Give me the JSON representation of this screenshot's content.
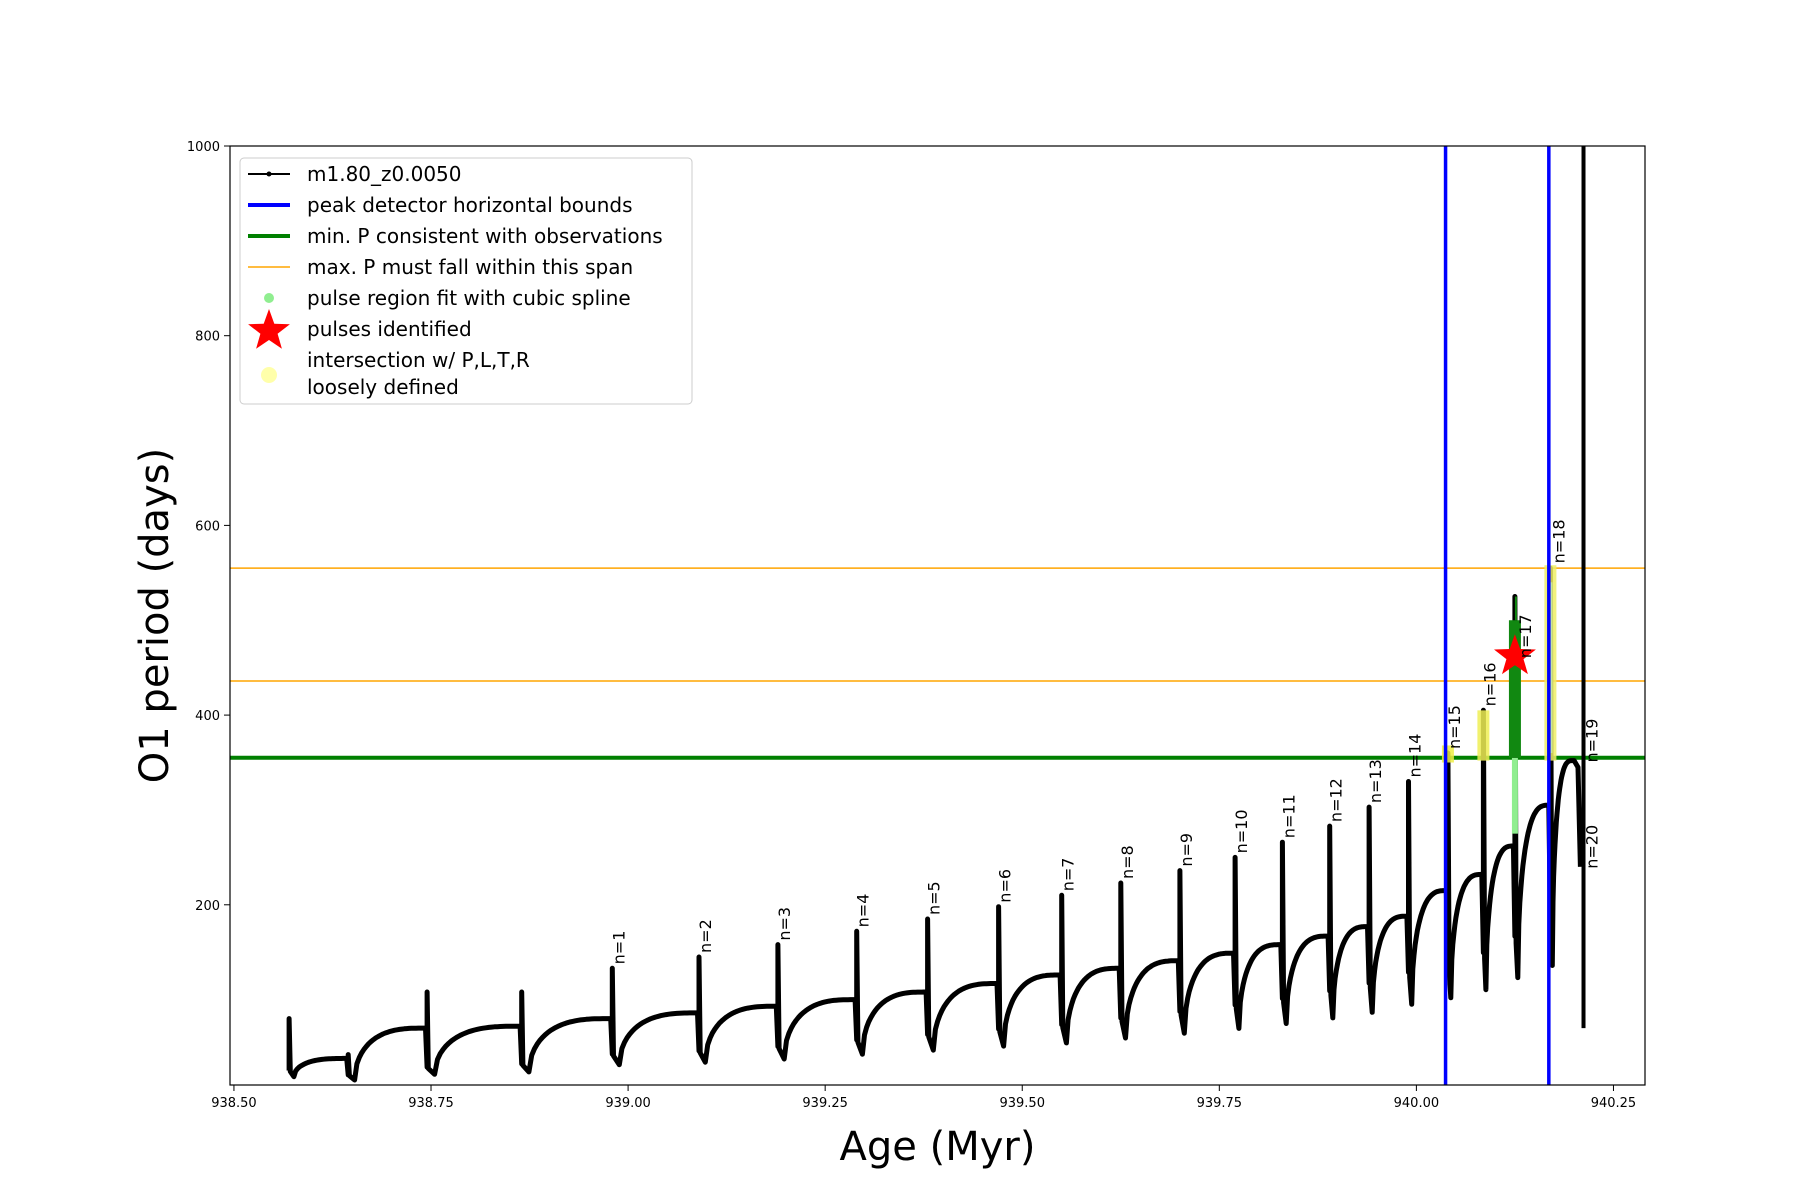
{
  "chart_data": {
    "type": "line",
    "title": "",
    "xlabel": "Age (Myr)",
    "ylabel": "O1 period (days)",
    "xlim": [
      938.495,
      940.29
    ],
    "ylim": [
      10,
      1000
    ],
    "x_ticks": [
      938.5,
      938.75,
      939.0,
      939.25,
      939.5,
      939.75,
      940.0,
      940.25
    ],
    "x_tick_labels": [
      "938.50",
      "938.75",
      "939.00",
      "939.25",
      "939.50",
      "939.75",
      "940.00",
      "940.25"
    ],
    "y_ticks": [
      200,
      400,
      600,
      800,
      1000
    ],
    "y_tick_labels": [
      "200",
      "400",
      "600",
      "800",
      "1000"
    ],
    "grid": false,
    "legend_position": "top-left",
    "legend": [
      {
        "label": "m1.80_z0.0050",
        "kind": "line-dot",
        "color": "#000000"
      },
      {
        "label": "peak detector horizontal bounds",
        "kind": "line",
        "color": "#0000ff"
      },
      {
        "label": "min. P consistent with observations",
        "kind": "line",
        "color": "#008000"
      },
      {
        "label": "max. P must fall within this span",
        "kind": "thin-line",
        "color": "#ffa500"
      },
      {
        "label": "pulse region fit with cubic spline",
        "kind": "dot",
        "color": "#90ee90"
      },
      {
        "label": "pulses identified",
        "kind": "star",
        "color": "#ff0000"
      },
      {
        "label": "intersection w/ P,L,T,R",
        "label2": "loosely defined",
        "kind": "big-dot",
        "color": "#ffffaa"
      }
    ],
    "vertical_lines": [
      {
        "x": 940.037,
        "color": "#0000ff"
      },
      {
        "x": 940.168,
        "color": "#0000ff"
      }
    ],
    "horizontal_lines": [
      {
        "y": 355,
        "color": "#008000",
        "width": 4
      },
      {
        "y": 436,
        "color": "#ffa500",
        "width": 1.5
      },
      {
        "y": 555,
        "color": "#ffa500",
        "width": 1.5
      }
    ],
    "pulses": [
      {
        "label": "n=1",
        "x": 938.98,
        "peak": 133,
        "base": 37,
        "end_val": 86
      },
      {
        "label": "n=2",
        "x": 939.09,
        "peak": 145,
        "base": 40,
        "end_val": 93
      },
      {
        "label": "n=3",
        "x": 939.19,
        "peak": 158,
        "base": 44,
        "end_val": 100
      },
      {
        "label": "n=4",
        "x": 939.29,
        "peak": 172,
        "base": 50,
        "end_val": 108
      },
      {
        "label": "n=5",
        "x": 939.38,
        "peak": 185,
        "base": 55,
        "end_val": 117
      },
      {
        "label": "n=6",
        "x": 939.47,
        "peak": 198,
        "base": 60,
        "end_val": 126
      },
      {
        "label": "n=7",
        "x": 939.55,
        "peak": 210,
        "base": 64,
        "end_val": 133
      },
      {
        "label": "n=8",
        "x": 939.625,
        "peak": 223,
        "base": 70,
        "end_val": 141
      },
      {
        "label": "n=9",
        "x": 939.7,
        "peak": 236,
        "base": 76,
        "end_val": 149
      },
      {
        "label": "n=10",
        "x": 939.77,
        "peak": 250,
        "base": 82,
        "end_val": 158
      },
      {
        "label": "n=11",
        "x": 939.83,
        "peak": 266,
        "base": 88,
        "end_val": 167
      },
      {
        "label": "n=12",
        "x": 939.89,
        "peak": 283,
        "base": 95,
        "end_val": 177
      },
      {
        "label": "n=13",
        "x": 939.94,
        "peak": 303,
        "base": 102,
        "end_val": 188
      },
      {
        "label": "n=14",
        "x": 939.99,
        "peak": 330,
        "base": 112,
        "end_val": 215
      },
      {
        "label": "n=15",
        "x": 940.04,
        "peak": 360,
        "base": 120,
        "end_val": 232
      },
      {
        "label": "n=16",
        "x": 940.085,
        "peak": 405,
        "base": 130,
        "end_val": 262
      },
      {
        "label": "n=17",
        "x": 940.125,
        "peak": 525,
        "base": 145,
        "end_val": 305
      },
      {
        "label": "n=18",
        "x": 940.17,
        "peak": 555,
        "base": 160,
        "end_val": 352
      },
      {
        "label": "n=19",
        "x": 940.205,
        "peak": 350,
        "base": 340,
        "end_val": 350
      },
      {
        "label": "n=20",
        "x": 940.205,
        "peak": 240,
        "base": 230,
        "end_val": 240
      }
    ],
    "early_pulses": [
      {
        "x": 938.57,
        "peak": 80,
        "base": 22
      },
      {
        "x": 938.645,
        "peak": 42,
        "base": 18
      },
      {
        "x": 938.745,
        "peak": 108,
        "base": 25
      },
      {
        "x": 938.865,
        "peak": 108,
        "base": 28
      }
    ],
    "final_spike": {
      "x": 940.212,
      "top": 1000,
      "bottom": 70
    },
    "identified_pulse": {
      "x": 940.125,
      "y": 462,
      "label": "n=17"
    },
    "series": [
      {
        "name": "m1.80_z0.0050",
        "color": "#000000"
      }
    ]
  }
}
